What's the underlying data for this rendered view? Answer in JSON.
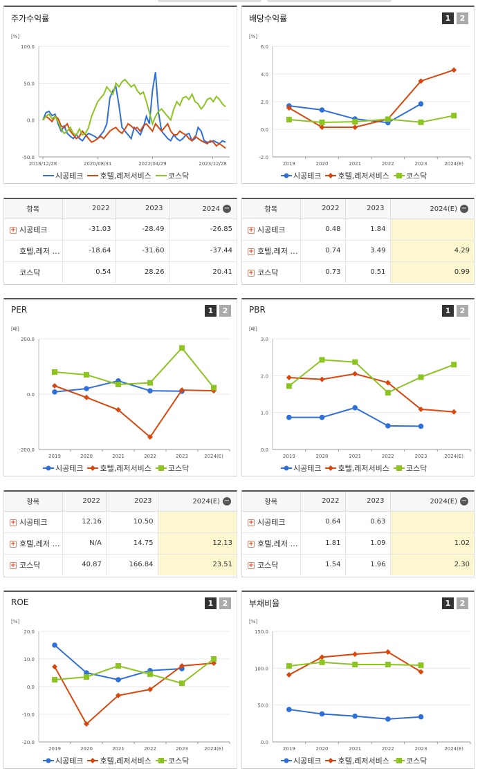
{
  "colors": {
    "s1": "#2e6fd8",
    "s2": "#d8470e",
    "s3": "#8cc420",
    "grid": "#e8e8e8",
    "axis": "#999"
  },
  "series_names": [
    "시공테크",
    "호텔,레저서비스",
    "코스닥"
  ],
  "panels": {
    "stock": {
      "title": "주가수익률",
      "unit": "[%]"
    },
    "dividend": {
      "title": "배당수익률",
      "unit": "[%]",
      "page1": "1",
      "page2": "2"
    },
    "per": {
      "title": "PER",
      "unit": "[배]",
      "page1": "1",
      "page2": "2"
    },
    "pbr": {
      "title": "PBR",
      "unit": "[배]",
      "page1": "1",
      "page2": "2"
    },
    "roe": {
      "title": "ROE",
      "unit": "[%]",
      "page1": "1",
      "page2": "2"
    },
    "debt": {
      "title": "부채비율",
      "unit": "[%]",
      "page1": "1",
      "page2": "2"
    }
  },
  "tables": {
    "stock": {
      "headers": [
        "항목",
        "2022",
        "2023",
        "2024"
      ],
      "rows": [
        {
          "name": "시공테크",
          "vals": [
            "-31.03",
            "-28.49",
            "-26.85"
          ],
          "plus": true
        },
        {
          "name": "호텔,레저 …",
          "vals": [
            "-18.64",
            "-31.60",
            "-37.44"
          ],
          "plus": false
        },
        {
          "name": "코스닥",
          "vals": [
            "0.54",
            "28.26",
            "20.41"
          ],
          "plus": false
        }
      ]
    },
    "dividend": {
      "headers": [
        "항목",
        "2022",
        "2023",
        "2024(E)"
      ],
      "rows": [
        {
          "name": "시공테크",
          "vals": [
            "0.48",
            "1.84",
            ""
          ],
          "plus": true
        },
        {
          "name": "호텔,레저 …",
          "vals": [
            "0.74",
            "3.49",
            "4.29"
          ],
          "plus": true
        },
        {
          "name": "코스닥",
          "vals": [
            "0.73",
            "0.51",
            "0.99"
          ],
          "plus": true
        }
      ]
    },
    "per": {
      "headers": [
        "항목",
        "2022",
        "2023",
        "2024(E)"
      ],
      "rows": [
        {
          "name": "시공테크",
          "vals": [
            "12.16",
            "10.50",
            ""
          ],
          "plus": true
        },
        {
          "name": "호텔,레저 …",
          "vals": [
            "N/A",
            "14.75",
            "12.13"
          ],
          "plus": true
        },
        {
          "name": "코스닥",
          "vals": [
            "40.87",
            "166.84",
            "23.51"
          ],
          "plus": true
        }
      ]
    },
    "pbr": {
      "headers": [
        "항목",
        "2022",
        "2023",
        "2024(E)"
      ],
      "rows": [
        {
          "name": "시공테크",
          "vals": [
            "0.64",
            "0.63",
            ""
          ],
          "plus": true
        },
        {
          "name": "호텔,레저 …",
          "vals": [
            "1.81",
            "1.09",
            "1.02"
          ],
          "plus": true
        },
        {
          "name": "코스닥",
          "vals": [
            "1.54",
            "1.96",
            "2.30"
          ],
          "plus": true
        }
      ]
    }
  },
  "chart_data": [
    {
      "id": "stock",
      "type": "line",
      "title": "주가수익률",
      "ylabel": "[%]",
      "ylim": [
        -50,
        100
      ],
      "yticks": [
        "100.0",
        "50.0",
        "0.0",
        "-50.0"
      ],
      "xticks": [
        "2018/12/28",
        "2020/08/31",
        "2022/04/29",
        "2023/12/28"
      ],
      "series": [
        {
          "name": "시공테크",
          "values": [
            0,
            10,
            12,
            6,
            8,
            -5,
            -15,
            -8,
            -18,
            -22,
            -25,
            -20,
            -25,
            -28,
            -22,
            -18,
            -20,
            -22,
            -25,
            -20,
            -15,
            -5,
            30,
            40,
            45,
            20,
            -10,
            -15,
            -20,
            -25,
            -10,
            -15,
            -20,
            -10,
            5,
            -5,
            40,
            65,
            10,
            -15,
            -20,
            -25,
            -28,
            -20,
            -25,
            -28,
            -25,
            -20,
            -18,
            -28,
            -25,
            -10,
            -15,
            -28,
            -30,
            -30,
            -28,
            -30,
            -32,
            -28,
            -30
          ]
        },
        {
          "name": "호텔,레저서비스",
          "values": [
            0,
            5,
            2,
            -2,
            5,
            2,
            -8,
            -10,
            -5,
            -15,
            -20,
            -25,
            -22,
            -15,
            -20,
            -25,
            -30,
            -28,
            -25,
            -22,
            -25,
            -20,
            -15,
            -12,
            -10,
            -15,
            -18,
            -12,
            -5,
            -8,
            -12,
            -10,
            -15,
            -8,
            -5,
            -10,
            -15,
            -5,
            -10,
            -15,
            -10,
            -5,
            -15,
            -20,
            -20,
            -15,
            -18,
            -20,
            -25,
            -28,
            -22,
            -25,
            -28,
            -30,
            -32,
            -28,
            -30,
            -35,
            -32,
            -35,
            -38
          ]
        },
        {
          "name": "코스닥",
          "values": [
            0,
            5,
            8,
            2,
            5,
            -2,
            -12,
            -18,
            -15,
            -10,
            -18,
            -20,
            -12,
            -20,
            -18,
            -10,
            5,
            15,
            25,
            30,
            35,
            45,
            40,
            35,
            50,
            45,
            52,
            55,
            50,
            45,
            48,
            40,
            35,
            38,
            25,
            10,
            -5,
            5,
            12,
            15,
            10,
            5,
            0,
            15,
            25,
            20,
            30,
            32,
            28,
            35,
            25,
            22,
            15,
            20,
            28,
            30,
            25,
            32,
            28,
            22,
            18
          ]
        }
      ]
    },
    {
      "id": "dividend",
      "type": "line",
      "title": "배당수익률",
      "ylabel": "[%]",
      "ylim": [
        -2,
        6
      ],
      "yticks": [
        "6.0",
        "4.0",
        "2.0",
        "0.0",
        "-2.0"
      ],
      "categories": [
        "2019",
        "2020",
        "2021",
        "2022",
        "2023",
        "2024(E)"
      ],
      "series": [
        {
          "name": "시공테크",
          "values": [
            1.7,
            1.4,
            0.75,
            0.48,
            1.84,
            null
          ]
        },
        {
          "name": "호텔,레저서비스",
          "values": [
            1.55,
            0.15,
            0.15,
            0.74,
            3.49,
            4.29
          ]
        },
        {
          "name": "코스닥",
          "values": [
            0.7,
            0.5,
            0.55,
            0.73,
            0.51,
            0.99
          ]
        }
      ]
    },
    {
      "id": "per",
      "type": "line",
      "title": "PER",
      "ylabel": "[배]",
      "ylim": [
        -200,
        200
      ],
      "yticks": [
        "200.0",
        "0.0",
        "-200.0"
      ],
      "categories": [
        "2019",
        "2020",
        "2021",
        "2022",
        "2023",
        "2024(E)"
      ],
      "series": [
        {
          "name": "시공테크",
          "values": [
            8,
            20,
            48,
            12.16,
            10.5,
            null
          ]
        },
        {
          "name": "호텔,레저서비스",
          "values": [
            30,
            -12,
            -57,
            -155,
            14.75,
            12.13
          ]
        },
        {
          "name": "코스닥",
          "values": [
            80,
            70,
            35,
            40.87,
            166.84,
            23.51
          ]
        }
      ]
    },
    {
      "id": "pbr",
      "type": "line",
      "title": "PBR",
      "ylabel": "[배]",
      "ylim": [
        0,
        3
      ],
      "yticks": [
        "3.0",
        "2.0",
        "1.0",
        "0.0"
      ],
      "categories": [
        "2019",
        "2020",
        "2021",
        "2022",
        "2023",
        "2024(E)"
      ],
      "series": [
        {
          "name": "시공테크",
          "values": [
            0.87,
            0.87,
            1.13,
            0.64,
            0.63,
            null
          ]
        },
        {
          "name": "호텔,레저서비스",
          "values": [
            1.95,
            1.9,
            2.05,
            1.81,
            1.09,
            1.02
          ]
        },
        {
          "name": "코스닥",
          "values": [
            1.72,
            2.43,
            2.37,
            1.54,
            1.96,
            2.3
          ]
        }
      ]
    },
    {
      "id": "roe",
      "type": "line",
      "title": "ROE",
      "ylabel": "[%]",
      "ylim": [
        -20,
        20
      ],
      "yticks": [
        "20.0",
        "10.0",
        "0.0",
        "-10.0",
        "-20.0"
      ],
      "categories": [
        "2019",
        "2020",
        "2021",
        "2022",
        "2023",
        "2024(E)"
      ],
      "series": [
        {
          "name": "시공테크",
          "values": [
            15,
            5,
            2.5,
            5.8,
            6.5,
            null
          ]
        },
        {
          "name": "호텔,레저서비스",
          "values": [
            7.2,
            -13.5,
            -3.2,
            -1,
            7.5,
            8.5
          ]
        },
        {
          "name": "코스닥",
          "values": [
            2.5,
            3.5,
            7.5,
            4.5,
            1.2,
            10
          ]
        }
      ]
    },
    {
      "id": "debt",
      "type": "line",
      "title": "부채비율",
      "ylabel": "[%]",
      "ylim": [
        0,
        150
      ],
      "yticks": [
        "150.0",
        "100.0",
        "50.0",
        "0.0"
      ],
      "categories": [
        "2019",
        "2020",
        "2021",
        "2022",
        "2023",
        "2024(E)"
      ],
      "series": [
        {
          "name": "시공테크",
          "values": [
            44,
            38,
            35,
            31,
            34,
            null
          ]
        },
        {
          "name": "호텔,레저서비스",
          "values": [
            91,
            115,
            119,
            122,
            95,
            null
          ]
        },
        {
          "name": "코스닥",
          "values": [
            103,
            108,
            105,
            105,
            104,
            null
          ]
        }
      ]
    }
  ]
}
